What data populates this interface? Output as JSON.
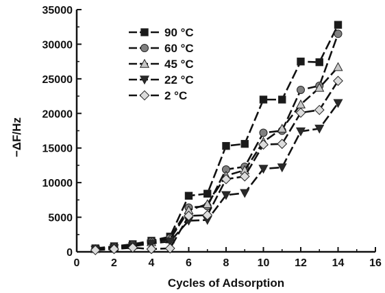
{
  "chart_data": {
    "type": "line",
    "xlabel": "Cycles of Adsorption",
    "ylabel": "−ΔF/Hz",
    "xlim": [
      0,
      16
    ],
    "ylim": [
      0,
      35000
    ],
    "x_ticks": [
      "0",
      "2",
      "4",
      "6",
      "8",
      "10",
      "12",
      "14",
      "16"
    ],
    "y_ticks": [
      "0",
      "5000",
      "10000",
      "15000",
      "20000",
      "25000",
      "30000",
      "35000"
    ],
    "legend_position": "top-left",
    "grid": false,
    "x": [
      1,
      2,
      3,
      4,
      5,
      6,
      7,
      8,
      9,
      10,
      11,
      12,
      13,
      14
    ],
    "series": [
      {
        "name": "90 °C",
        "marker": "square",
        "fill": "#1a1a1a",
        "dash": "14,5",
        "values": [
          500,
          800,
          1100,
          1600,
          2200,
          8100,
          8400,
          15300,
          15600,
          22000,
          22000,
          27500,
          27400,
          32800
        ]
      },
      {
        "name": "60 °C",
        "marker": "circle",
        "fill": "#808080",
        "dash": "14,5",
        "values": [
          450,
          700,
          1000,
          1500,
          2000,
          6400,
          6600,
          11900,
          12300,
          17200,
          17500,
          23400,
          24000,
          31500
        ]
      },
      {
        "name": "45 °C",
        "marker": "triangle-up",
        "fill": "#c8c8c8",
        "dash": "14,5",
        "values": [
          400,
          650,
          950,
          1400,
          1800,
          6000,
          6900,
          11000,
          11800,
          15900,
          17800,
          21300,
          23700,
          26700
        ]
      },
      {
        "name": "22 °C",
        "marker": "triangle-down",
        "fill": "#2a2a2a",
        "dash": "14,5",
        "values": [
          300,
          500,
          800,
          1200,
          1500,
          4500,
          4600,
          8200,
          8500,
          12000,
          12200,
          17400,
          17800,
          21500
        ]
      },
      {
        "name": "2 °C",
        "marker": "diamond",
        "fill": "#dcdcdc",
        "dash": "14,5",
        "values": [
          250,
          400,
          600,
          400,
          500,
          5200,
          5300,
          10500,
          10900,
          15500,
          15600,
          20100,
          20500,
          24700
        ]
      }
    ]
  }
}
